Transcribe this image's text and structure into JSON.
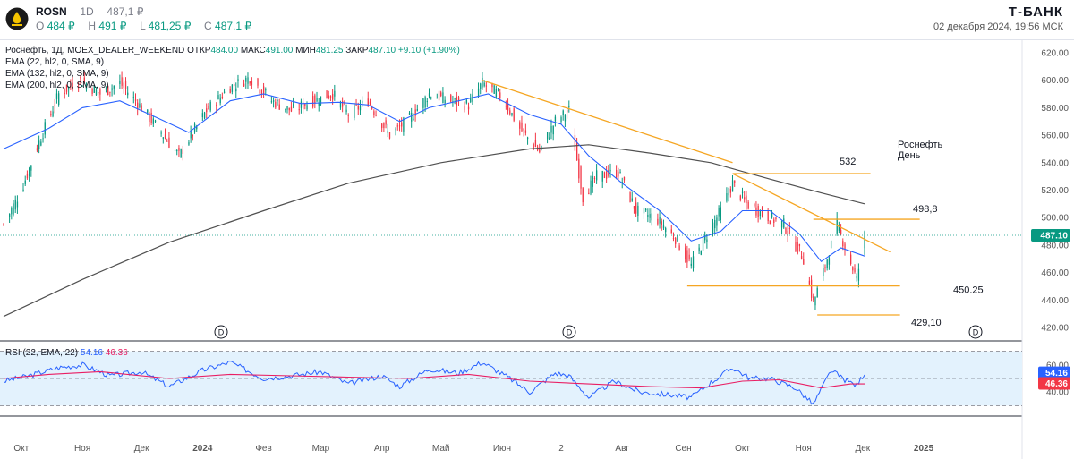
{
  "header": {
    "symbol": "ROSN",
    "timeframe": "1D",
    "last_price": "487,1 ₽",
    "open_label": "O",
    "open_value": "484 ₽",
    "high_label": "H",
    "high_value": "491 ₽",
    "low_label": "L",
    "low_value": "481,25 ₽",
    "close_label": "C",
    "close_value": "487,1 ₽",
    "broker": "Т-БАНК",
    "date_time": "02 декабря 2024, 19:56 МСК"
  },
  "legend": {
    "main_prefix": "Роснефть, 1Д, MOEX_DEALER_WEEKEND",
    "open_label": "ОТКР",
    "open_value": "484.00",
    "high_label": "МАКС",
    "high_value": "491.00",
    "low_label": "МИН",
    "low_value": "481.25",
    "close_label": "ЗАКР",
    "close_value": "487.10",
    "change": "+9.10 (+1.90%)",
    "ema_lines": [
      "EMA (22, hl2, 0, SMA, 9)",
      "EMA (132, hl2, 0, SMA, 9)",
      "EMA (200, hl2, 0, SMA, 9)"
    ]
  },
  "colors": {
    "up": "#089981",
    "down": "#f23645",
    "ema_fast": "#2962ff",
    "ema_slow": "#505050",
    "trendline": "#f5a623",
    "rsi": "#2962ff",
    "rsi_ma": "#e91e63",
    "rsi_band": "#e3f2fd",
    "price_tag": "#089981",
    "rsi_tag": "#2962ff",
    "rsi_ma_tag": "#f23645"
  },
  "chart_data": [
    {
      "type": "candlestick",
      "title": "",
      "x_axis_labels": [
        "Окт",
        "Ноя",
        "Дек",
        "2024",
        "Фев",
        "Мар",
        "Апр",
        "Май",
        "Июн",
        "2",
        "Авг",
        "Сен",
        "Окт",
        "Ноя",
        "Дек",
        "2025"
      ],
      "y_axis_ticks": [
        "620.00",
        "600.00",
        "580.00",
        "560.00",
        "540.00",
        "520.00",
        "500.00",
        "480.00",
        "460.00",
        "440.00",
        "420.00"
      ],
      "ylim": [
        420,
        620
      ],
      "last_price_tag": "487.10",
      "price_path": [
        [
          "2023-09-22",
          495
        ],
        [
          "2023-10-01",
          520
        ],
        [
          "2023-10-10",
          555
        ],
        [
          "2023-10-20",
          590
        ],
        [
          "2023-10-31",
          600
        ],
        [
          "2023-11-10",
          590
        ],
        [
          "2023-11-20",
          598
        ],
        [
          "2023-12-01",
          580
        ],
        [
          "2023-12-12",
          560
        ],
        [
          "2023-12-20",
          545
        ],
        [
          "2024-01-03",
          578
        ],
        [
          "2024-01-15",
          595
        ],
        [
          "2024-01-25",
          602
        ],
        [
          "2024-02-05",
          585
        ],
        [
          "2024-02-15",
          578
        ],
        [
          "2024-02-26",
          585
        ],
        [
          "2024-03-07",
          590
        ],
        [
          "2024-03-15",
          575
        ],
        [
          "2024-03-25",
          585
        ],
        [
          "2024-04-05",
          560
        ],
        [
          "2024-04-15",
          572
        ],
        [
          "2024-04-25",
          590
        ],
        [
          "2024-05-06",
          585
        ],
        [
          "2024-05-15",
          582
        ],
        [
          "2024-05-22",
          598
        ],
        [
          "2024-06-01",
          588
        ],
        [
          "2024-06-10",
          565
        ],
        [
          "2024-06-20",
          548
        ],
        [
          "2024-06-28",
          570
        ],
        [
          "2024-07-05",
          578
        ],
        [
          "2024-07-12",
          515
        ],
        [
          "2024-07-19",
          530
        ],
        [
          "2024-07-30",
          533
        ],
        [
          "2024-08-08",
          505
        ],
        [
          "2024-08-18",
          500
        ],
        [
          "2024-08-28",
          485
        ],
        [
          "2024-09-05",
          465
        ],
        [
          "2024-09-12",
          485
        ],
        [
          "2024-09-20",
          505
        ],
        [
          "2024-09-26",
          525
        ],
        [
          "2024-10-03",
          510
        ],
        [
          "2024-10-12",
          502
        ],
        [
          "2024-10-22",
          495
        ],
        [
          "2024-11-01",
          470
        ],
        [
          "2024-11-06",
          438
        ],
        [
          "2024-11-11",
          460
        ],
        [
          "2024-11-18",
          495
        ],
        [
          "2024-11-23",
          475
        ],
        [
          "2024-11-28",
          455
        ],
        [
          "2024-12-02",
          487
        ]
      ],
      "ema_22": [
        [
          "2023-09-22",
          550
        ],
        [
          "2023-10-15",
          565
        ],
        [
          "2023-11-01",
          580
        ],
        [
          "2023-11-20",
          585
        ],
        [
          "2023-12-10",
          572
        ],
        [
          "2023-12-25",
          562
        ],
        [
          "2024-01-15",
          585
        ],
        [
          "2024-02-01",
          590
        ],
        [
          "2024-02-20",
          583
        ],
        [
          "2024-03-10",
          584
        ],
        [
          "2024-03-25",
          582
        ],
        [
          "2024-04-10",
          570
        ],
        [
          "2024-04-25",
          580
        ],
        [
          "2024-05-10",
          585
        ],
        [
          "2024-05-25",
          590
        ],
        [
          "2024-06-15",
          575
        ],
        [
          "2024-07-01",
          568
        ],
        [
          "2024-07-15",
          545
        ],
        [
          "2024-08-01",
          525
        ],
        [
          "2024-08-20",
          505
        ],
        [
          "2024-09-05",
          483
        ],
        [
          "2024-09-20",
          490
        ],
        [
          "2024-10-01",
          505
        ],
        [
          "2024-10-15",
          505
        ],
        [
          "2024-10-30",
          488
        ],
        [
          "2024-11-10",
          468
        ],
        [
          "2024-11-20",
          478
        ],
        [
          "2024-12-02",
          472
        ]
      ],
      "ema_200": [
        [
          "2023-09-22",
          428
        ],
        [
          "2023-11-01",
          455
        ],
        [
          "2023-12-15",
          482
        ],
        [
          "2024-02-01",
          505
        ],
        [
          "2024-03-15",
          525
        ],
        [
          "2024-05-01",
          540
        ],
        [
          "2024-06-15",
          550
        ],
        [
          "2024-07-15",
          553
        ],
        [
          "2024-08-15",
          547
        ],
        [
          "2024-09-15",
          540
        ],
        [
          "2024-10-15",
          528
        ],
        [
          "2024-11-10",
          518
        ],
        [
          "2024-12-02",
          510
        ]
      ],
      "levels": [
        {
          "label": "532",
          "value": 532
        },
        {
          "label": "498,8",
          "value": 498.8
        },
        {
          "label": "450.25",
          "value": 450.25
        },
        {
          "label": "429,10",
          "value": 429.1
        }
      ],
      "annotation": {
        "line1": "Роснефть",
        "line2": "День"
      },
      "dividend_markers": [
        "D",
        "D",
        "D"
      ]
    },
    {
      "type": "line",
      "title": "RSI (22, EMA, 22)",
      "values_display": {
        "rsi": "54.16",
        "rsi_ma": "46.36"
      },
      "y_axis_ticks": [
        "60.00",
        "40.00"
      ],
      "ylim": [
        25,
        75
      ],
      "band": [
        30,
        70
      ],
      "middle": 50,
      "rsi": [
        [
          "2023-09-22",
          48
        ],
        [
          "2023-10-05",
          52
        ],
        [
          "2023-10-20",
          58
        ],
        [
          "2023-11-01",
          60
        ],
        [
          "2023-11-15",
          52
        ],
        [
          "2023-12-01",
          55
        ],
        [
          "2023-12-15",
          44
        ],
        [
          "2024-01-01",
          56
        ],
        [
          "2024-01-15",
          62
        ],
        [
          "2024-02-01",
          50
        ],
        [
          "2024-02-15",
          52
        ],
        [
          "2024-03-01",
          55
        ],
        [
          "2024-03-15",
          46
        ],
        [
          "2024-04-01",
          52
        ],
        [
          "2024-04-10",
          44
        ],
        [
          "2024-04-25",
          57
        ],
        [
          "2024-05-10",
          54
        ],
        [
          "2024-05-22",
          62
        ],
        [
          "2024-06-05",
          50
        ],
        [
          "2024-06-15",
          40
        ],
        [
          "2024-06-28",
          54
        ],
        [
          "2024-07-05",
          52
        ],
        [
          "2024-07-15",
          36
        ],
        [
          "2024-07-28",
          48
        ],
        [
          "2024-08-10",
          40
        ],
        [
          "2024-08-25",
          38
        ],
        [
          "2024-09-05",
          36
        ],
        [
          "2024-09-15",
          47
        ],
        [
          "2024-09-26",
          58
        ],
        [
          "2024-10-05",
          50
        ],
        [
          "2024-10-15",
          50
        ],
        [
          "2024-10-28",
          43
        ],
        [
          "2024-11-06",
          31
        ],
        [
          "2024-11-15",
          56
        ],
        [
          "2024-11-22",
          49
        ],
        [
          "2024-11-28",
          45
        ],
        [
          "2024-12-02",
          54
        ]
      ],
      "rsi_ma": [
        [
          "2023-09-22",
          50
        ],
        [
          "2023-10-15",
          53
        ],
        [
          "2023-11-10",
          55
        ],
        [
          "2023-12-15",
          50
        ],
        [
          "2024-01-15",
          53
        ],
        [
          "2024-02-15",
          52
        ],
        [
          "2024-03-15",
          51
        ],
        [
          "2024-04-15",
          50
        ],
        [
          "2024-05-15",
          53
        ],
        [
          "2024-06-15",
          48
        ],
        [
          "2024-07-15",
          46
        ],
        [
          "2024-08-15",
          44
        ],
        [
          "2024-09-10",
          43
        ],
        [
          "2024-10-01",
          48
        ],
        [
          "2024-10-20",
          49
        ],
        [
          "2024-11-10",
          43
        ],
        [
          "2024-11-25",
          46
        ],
        [
          "2024-12-02",
          46
        ]
      ]
    }
  ]
}
